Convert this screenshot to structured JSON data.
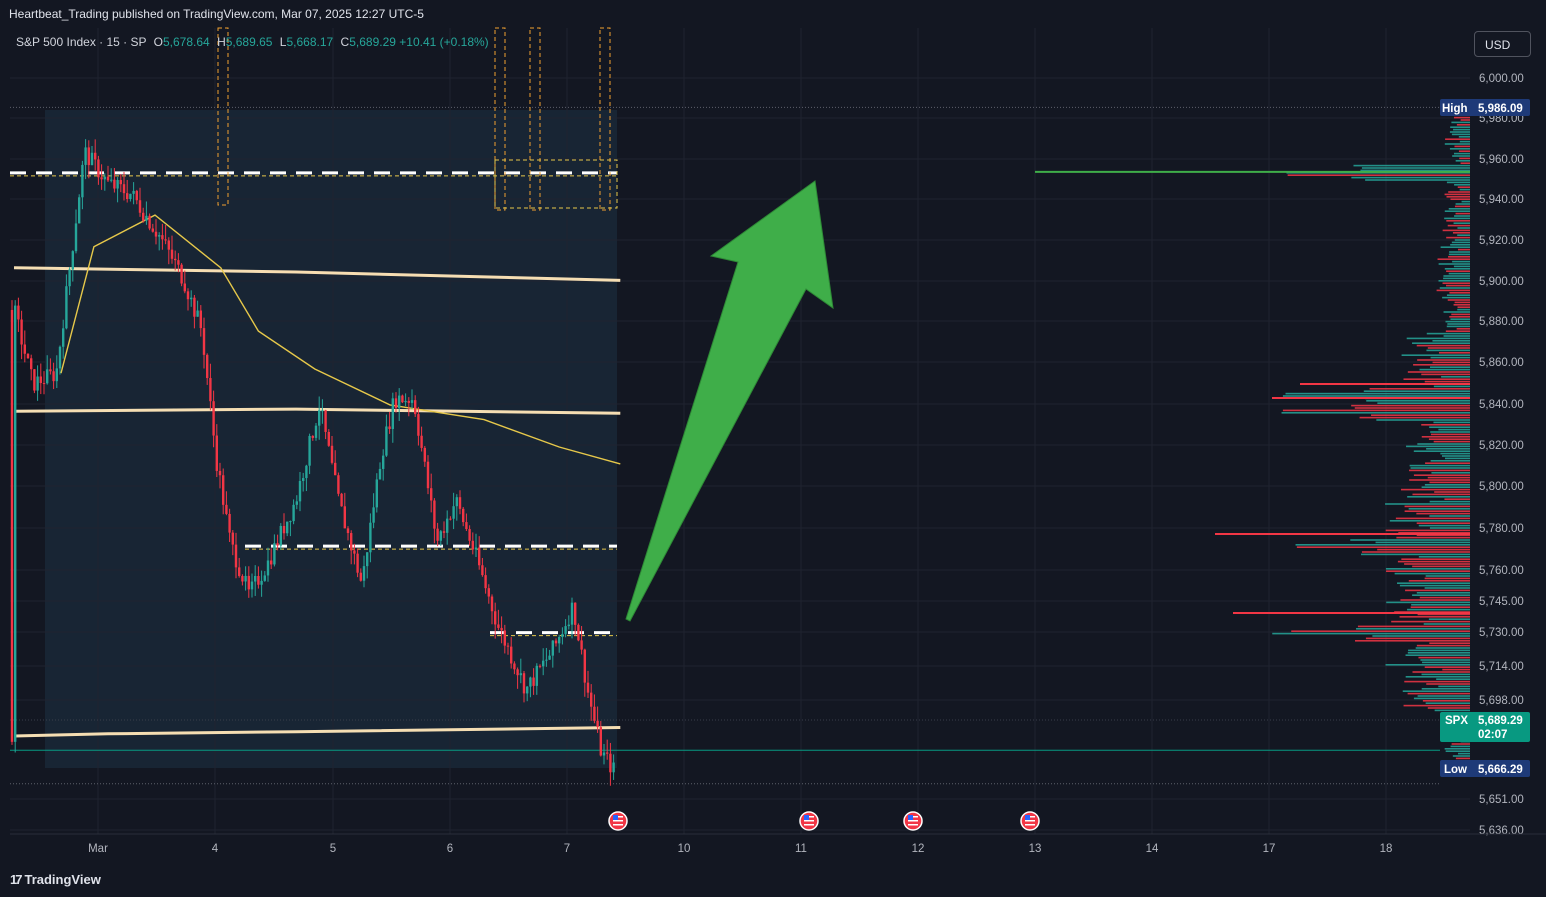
{
  "publisher_line": "Heartbeat_Trading published on TradingView.com, Mar 07, 2025 12:27 UTC-5",
  "legend": {
    "symbol": "S&P 500 Index · 15 · SP",
    "o_label": "O",
    "o_value": "5,678.64",
    "h_label": "H",
    "h_value": "5,689.65",
    "l_label": "L",
    "l_value": "5,668.17",
    "c_label": "C",
    "c_value": "5,689.29",
    "change": "+10.41 (+0.18%)"
  },
  "currency_button": "USD",
  "price_tags": {
    "high_label": "High",
    "high_value": "5,986.09",
    "last_symbol": "SPX",
    "last_value": "5,689.29",
    "countdown": "02:07",
    "low_label": "Low",
    "low_value": "5,666.29"
  },
  "footer": {
    "brand": "TradingView"
  },
  "colors": {
    "background": "#131722",
    "up": "#26a69a",
    "down": "#f23645",
    "arrow": "#3fae49",
    "ma_long": "#f5deb3",
    "ma_short": "#e6c84a",
    "session": "#1b2b3a",
    "high_tag": "#1e3a78",
    "last_tag": "#089981"
  },
  "icons": {
    "event_markers": "us-flag-icon"
  },
  "chart_data": {
    "type": "candlestick",
    "title": "S&P 500 Index",
    "interval": "15",
    "x_ticks": [
      "Mar",
      "4",
      "5",
      "6",
      "7",
      "10",
      "11",
      "12",
      "13",
      "14",
      "17",
      "18"
    ],
    "y_ticks": [
      "6,000.00",
      "5,980.00",
      "5,960.00",
      "5,940.00",
      "5,920.00",
      "5,900.00",
      "5,880.00",
      "5,860.00",
      "5,840.00",
      "5,820.00",
      "5,800.00",
      "5,780.00",
      "5,760.00",
      "5,745.00",
      "5,730.00",
      "5,714.00",
      "5,698.00",
      "5,651.00",
      "5,636.00"
    ],
    "ylim": [
      5636,
      6010
    ],
    "high": 5986.09,
    "low": 5666.29,
    "last": 5689.29,
    "path_keypoints": [
      {
        "t": 0.0,
        "p": 5890
      },
      {
        "t": 0.2,
        "p": 5855
      },
      {
        "t": 0.45,
        "p": 5860
      },
      {
        "t": 0.75,
        "p": 5965
      },
      {
        "t": 1.0,
        "p": 5950
      },
      {
        "t": 1.25,
        "p": 5945
      },
      {
        "t": 1.55,
        "p": 5925
      },
      {
        "t": 1.8,
        "p": 5905
      },
      {
        "t": 2.0,
        "p": 5880
      },
      {
        "t": 2.15,
        "p": 5820
      },
      {
        "t": 2.3,
        "p": 5780
      },
      {
        "t": 2.5,
        "p": 5755
      },
      {
        "t": 2.7,
        "p": 5770
      },
      {
        "t": 3.0,
        "p": 5800
      },
      {
        "t": 3.25,
        "p": 5845
      },
      {
        "t": 3.45,
        "p": 5800
      },
      {
        "t": 3.7,
        "p": 5760
      },
      {
        "t": 3.9,
        "p": 5820
      },
      {
        "t": 4.05,
        "p": 5848
      },
      {
        "t": 4.25,
        "p": 5848
      },
      {
        "t": 4.5,
        "p": 5780
      },
      {
        "t": 4.7,
        "p": 5800
      },
      {
        "t": 4.9,
        "p": 5775
      },
      {
        "t": 5.15,
        "p": 5740
      },
      {
        "t": 5.45,
        "p": 5710
      },
      {
        "t": 5.75,
        "p": 5730
      },
      {
        "t": 5.95,
        "p": 5750
      },
      {
        "t": 6.1,
        "p": 5710
      },
      {
        "t": 6.25,
        "p": 5680
      },
      {
        "t": 6.38,
        "p": 5672
      },
      {
        "t": 6.45,
        "p": 5689.29
      }
    ],
    "moving_averages": [
      {
        "name": "",
        "color": "#f5deb3",
        "points": [
          [
            0,
            5910
          ],
          [
            3,
            5908
          ],
          [
            6.45,
            5904
          ]
        ]
      },
      {
        "name": "",
        "color": "#f5deb3",
        "points": [
          [
            0,
            5842
          ],
          [
            3,
            5843
          ],
          [
            6.45,
            5841
          ]
        ]
      },
      {
        "name": "",
        "color": "#f5deb3",
        "points": [
          [
            0,
            5688
          ],
          [
            1,
            5689
          ],
          [
            3,
            5690
          ],
          [
            6.45,
            5692
          ]
        ]
      },
      {
        "name": "",
        "color": "#e6c84a",
        "points": [
          [
            0.5,
            5860
          ],
          [
            0.85,
            5920
          ],
          [
            1.5,
            5935
          ],
          [
            2.2,
            5910
          ],
          [
            2.6,
            5880
          ],
          [
            3.2,
            5862
          ],
          [
            4,
            5845
          ],
          [
            5.0,
            5838
          ],
          [
            5.8,
            5825
          ],
          [
            6.45,
            5817
          ]
        ]
      }
    ],
    "levels": [
      5955,
      5778,
      5737
    ],
    "projection_arrow": {
      "from": {
        "t": 6.5,
        "p": 5737
      },
      "to": {
        "t": 8.1,
        "p": 5950
      }
    },
    "volume_profile": {
      "peaks": [
        5850,
        5842,
        5778,
        5737,
        5955
      ]
    },
    "event_days": [
      "7",
      "11",
      "12",
      "13"
    ]
  }
}
